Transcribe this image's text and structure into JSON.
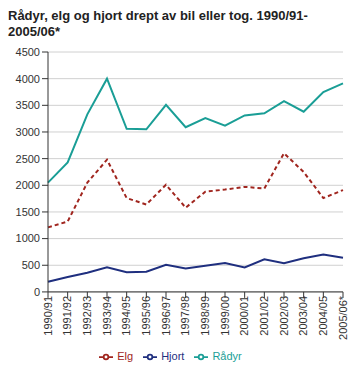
{
  "chart_data": {
    "type": "line",
    "title": "Rådyr, elg og hjort drept av bil eller tog. 1990/91-2005/06*",
    "categories": [
      "1990/91",
      "1991/92",
      "1992/93",
      "1993/94",
      "1994/95",
      "1995/96",
      "1996/97",
      "1997/98",
      "1998/99",
      "1999/00",
      "2000/01",
      "2001/02",
      "2002/03",
      "2003/04",
      "2004/05",
      "2005/06*"
    ],
    "series": [
      {
        "name": "Rådyr",
        "color": "#1a9e96",
        "line_style": "solid",
        "values": [
          2050,
          2430,
          3330,
          4000,
          3060,
          3050,
          3510,
          3090,
          3260,
          3120,
          3310,
          3350,
          3580,
          3380,
          3750,
          3910
        ]
      },
      {
        "name": "Elg",
        "color": "#a0251e",
        "line_style": "dashed",
        "values": [
          1210,
          1320,
          2050,
          2480,
          1760,
          1640,
          2010,
          1580,
          1880,
          1920,
          1970,
          1940,
          2600,
          2250,
          1760,
          1910
        ]
      },
      {
        "name": "Hjort",
        "color": "#1f2f7f",
        "line_style": "solid",
        "values": [
          190,
          280,
          360,
          460,
          370,
          380,
          510,
          440,
          490,
          540,
          460,
          610,
          540,
          630,
          700,
          640
        ]
      }
    ],
    "ylim": [
      0,
      4500
    ],
    "yticks": [
      0,
      500,
      1000,
      1500,
      2000,
      2500,
      3000,
      3500,
      4000,
      4500
    ],
    "grid": true,
    "legend": "bottom"
  }
}
